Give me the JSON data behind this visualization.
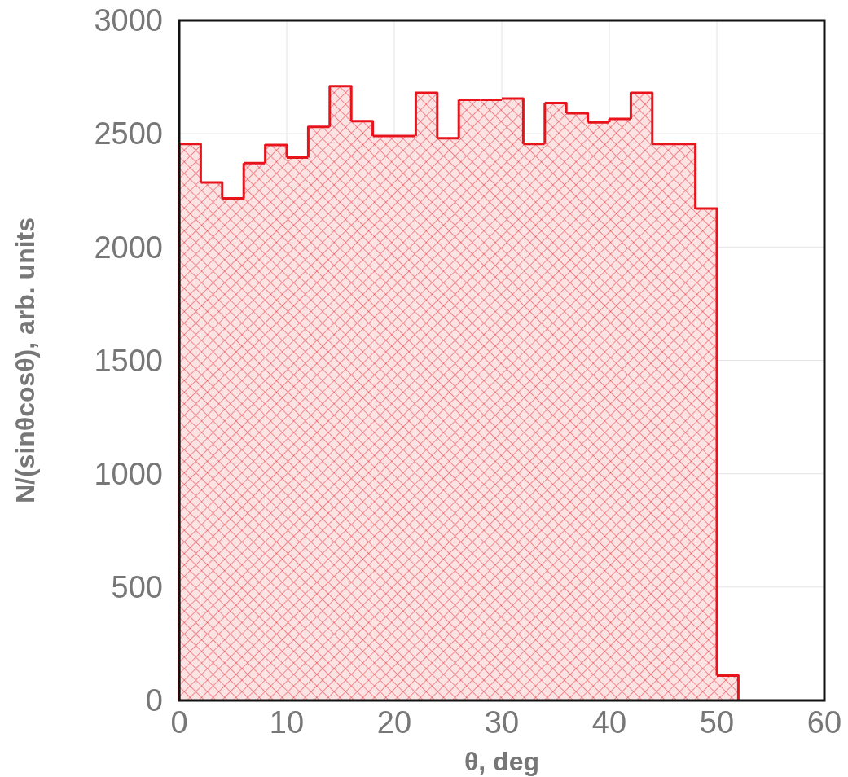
{
  "chart_data": {
    "type": "histogram",
    "xlabel": "θ, deg",
    "ylabel": "N/(sinθcosθ), arb. units",
    "bins": [
      0,
      2,
      4,
      6,
      8,
      10,
      12,
      14,
      16,
      18,
      20,
      22,
      24,
      26,
      28,
      30,
      32,
      34,
      36,
      38,
      40,
      42,
      44,
      46,
      48,
      50,
      52,
      54,
      56,
      58,
      60
    ],
    "values": [
      2455,
      2285,
      2215,
      2370,
      2450,
      2395,
      2530,
      2710,
      2555,
      2490,
      2490,
      2680,
      2480,
      2650,
      2650,
      2655,
      2455,
      2635,
      2590,
      2550,
      2565,
      2680,
      2455,
      2455,
      2170,
      110,
      0,
      0,
      0,
      0
    ],
    "color": "#e8141c",
    "xlim": [
      0,
      60
    ],
    "xticks": [
      0,
      10,
      20,
      30,
      40,
      50,
      60
    ],
    "ylim": [
      0,
      3000
    ],
    "yticks": [
      0,
      500,
      1000,
      1500,
      2000,
      2500,
      3000
    ],
    "grid": true
  }
}
